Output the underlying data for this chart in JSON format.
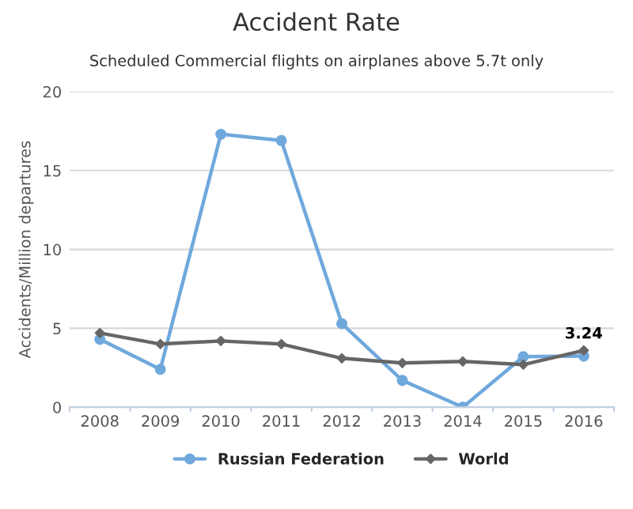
{
  "chart_data": {
    "type": "line",
    "title": "Accident Rate",
    "subtitle": "Scheduled Commercial flights on airplanes above 5.7t only",
    "ylabel": "Accidents/Million departures",
    "categories": [
      "2008",
      "2009",
      "2010",
      "2011",
      "2012",
      "2013",
      "2014",
      "2015",
      "2016"
    ],
    "series": [
      {
        "name": "Russian Federation",
        "color": "#6fa8dc",
        "marker": "circle",
        "values": [
          4.3,
          2.4,
          17.3,
          16.9,
          5.3,
          1.7,
          0,
          3.2,
          3.24
        ],
        "value_labels": [
          null,
          null,
          null,
          null,
          null,
          null,
          null,
          null,
          "3.24"
        ]
      },
      {
        "name": "World",
        "color": "#666666",
        "marker": "diamond",
        "values": [
          4.7,
          4.0,
          4.2,
          4.0,
          3.1,
          2.8,
          2.9,
          2.7,
          3.6
        ]
      }
    ],
    "ylim": [
      0,
      20
    ],
    "yticks": [
      0,
      5,
      10,
      15,
      20
    ],
    "grid": "y",
    "legend": "bottom",
    "line_style": "solid"
  }
}
